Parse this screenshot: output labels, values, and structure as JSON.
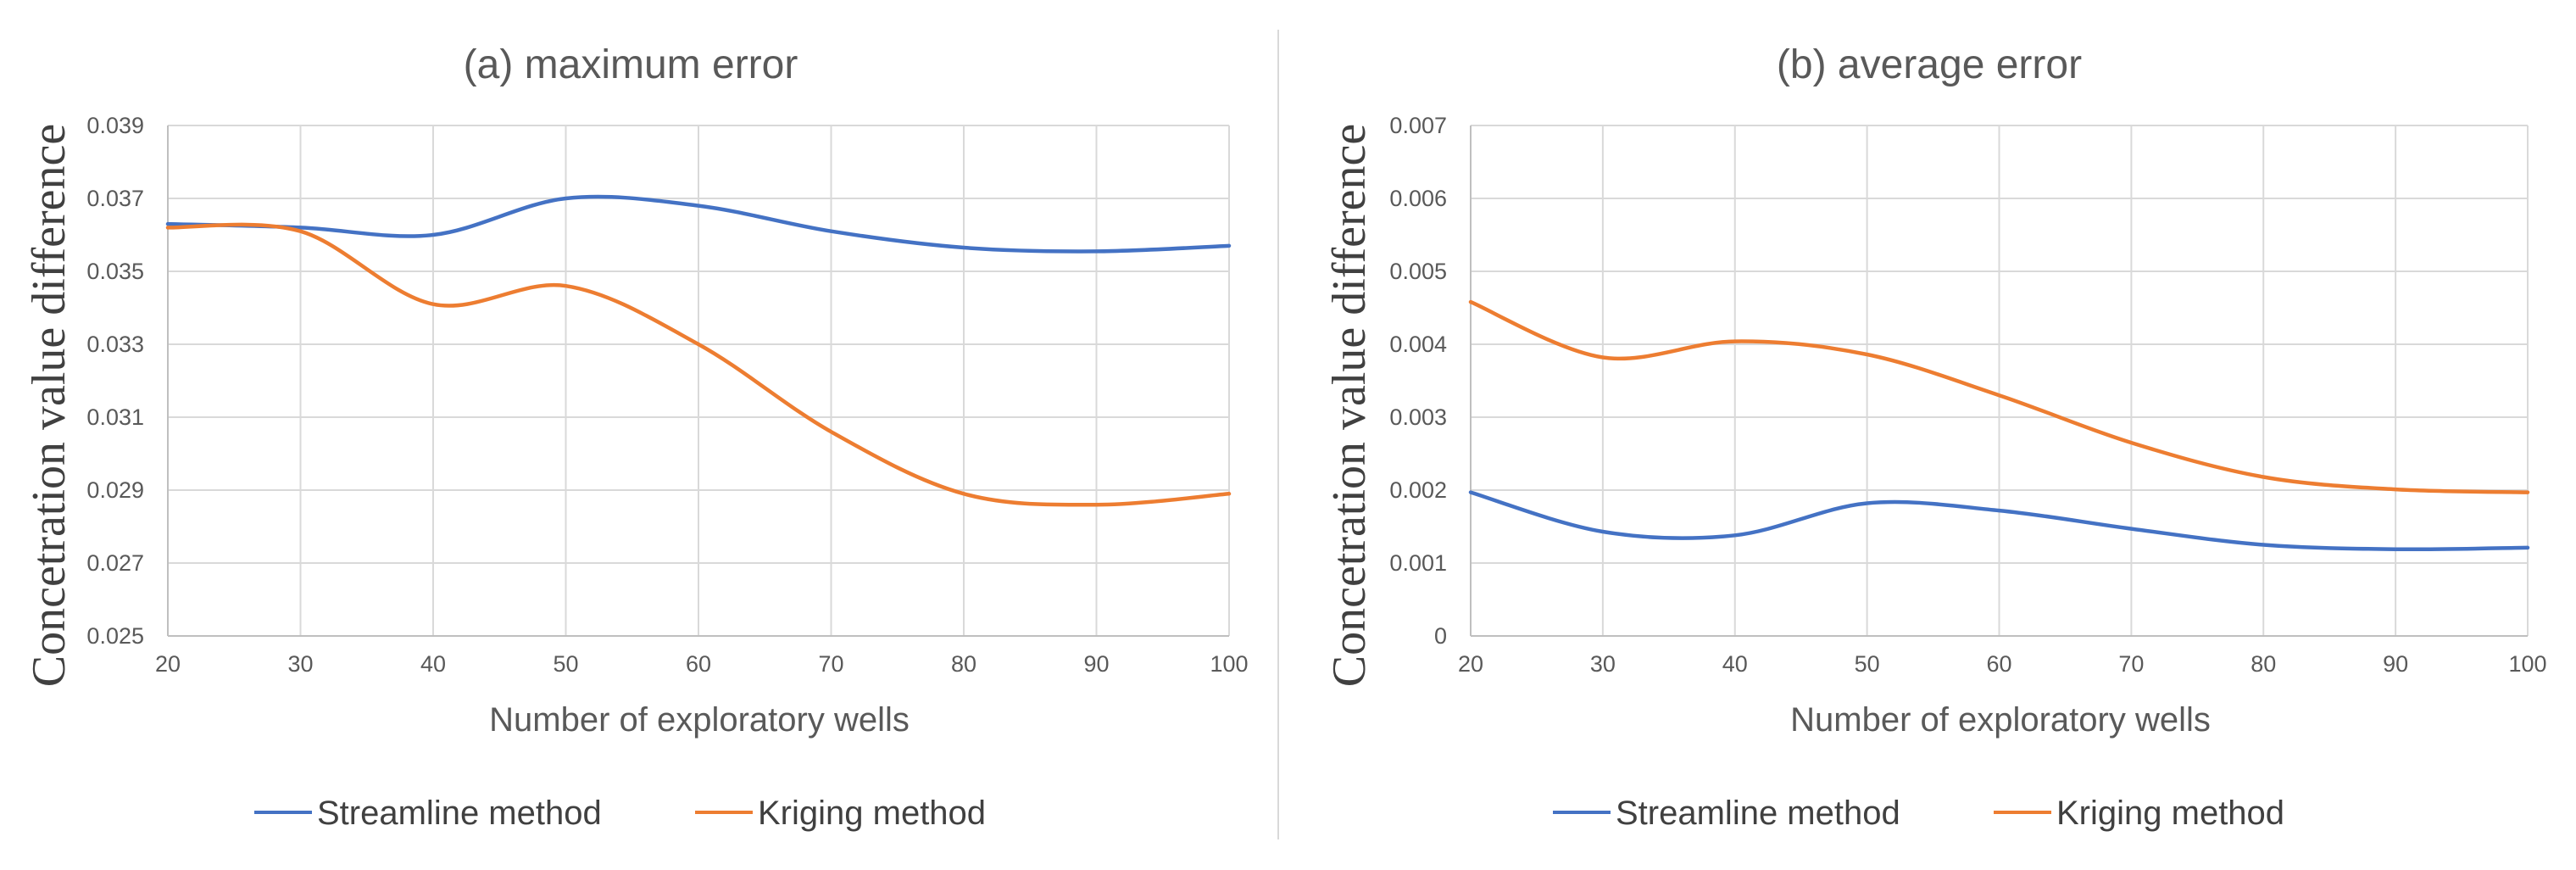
{
  "chart_data": [
    {
      "type": "line",
      "title": "(a) maximum error",
      "xlabel": "Number of exploratory wells",
      "ylabel": "Concetration value difference",
      "x": [
        20,
        30,
        40,
        50,
        60,
        70,
        80,
        90,
        100
      ],
      "xlim": [
        20,
        100
      ],
      "ylim": [
        0.025,
        0.039
      ],
      "yticks": [
        "0.025",
        "0.027",
        "0.029",
        "0.031",
        "0.033",
        "0.035",
        "0.037",
        "0.039"
      ],
      "grid": true,
      "legend": "bottom",
      "series": [
        {
          "name": "Streamline method",
          "color": "#4472c4",
          "values": [
            0.0363,
            0.0362,
            0.036,
            0.037,
            0.0368,
            0.0361,
            0.03565,
            0.03555,
            0.0357
          ]
        },
        {
          "name": "Kriging method",
          "color": "#ed7d31",
          "values": [
            0.0362,
            0.0361,
            0.0341,
            0.0346,
            0.033,
            0.0306,
            0.0289,
            0.0286,
            0.0289
          ]
        }
      ]
    },
    {
      "type": "line",
      "title": "(b) average error",
      "xlabel": "Number of exploratory wells",
      "ylabel": "Concetration value difference",
      "x": [
        20,
        30,
        40,
        50,
        60,
        70,
        80,
        90,
        100
      ],
      "xlim": [
        20,
        100
      ],
      "ylim": [
        0,
        0.007
      ],
      "yticks": [
        "0",
        "0.001",
        "0.002",
        "0.003",
        "0.004",
        "0.005",
        "0.006",
        "0.007"
      ],
      "grid": true,
      "legend": "bottom",
      "series": [
        {
          "name": "Streamline method",
          "color": "#4472c4",
          "values": [
            0.00197,
            0.00143,
            0.00138,
            0.00182,
            0.00172,
            0.00147,
            0.00125,
            0.00119,
            0.00121
          ]
        },
        {
          "name": "Kriging method",
          "color": "#ed7d31",
          "values": [
            0.00458,
            0.00382,
            0.00404,
            0.00386,
            0.0033,
            0.00265,
            0.00218,
            0.00201,
            0.00197
          ]
        }
      ]
    }
  ]
}
